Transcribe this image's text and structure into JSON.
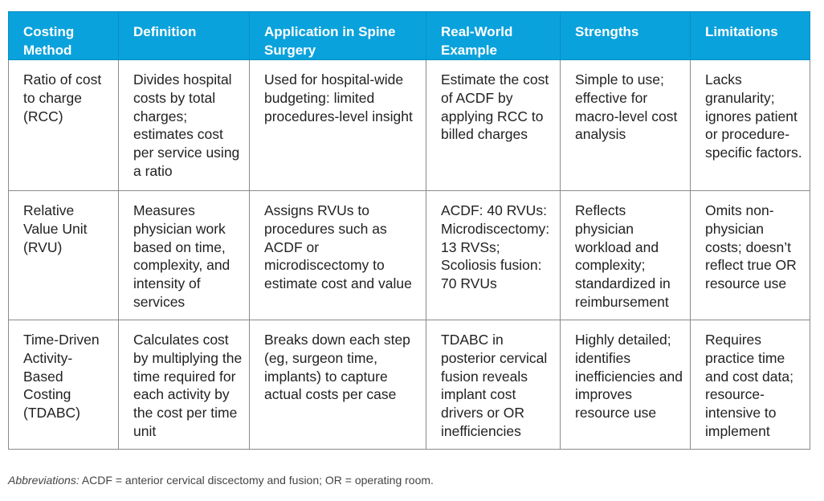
{
  "table": {
    "headers": [
      "Costing Method",
      "Definition",
      "Application in Spine Surgery",
      "Real-World Example",
      "Strengths",
      "Limitations"
    ],
    "rows": [
      {
        "method": "Ratio of cost to charge (RCC)",
        "definition": "Divides hospital costs by total charges; estimates cost per service using a ratio",
        "application": "Used for hospital-wide budgeting: limited procedures-level insight",
        "example": "Estimate the cost of ACDF by applying RCC to billed charges",
        "strengths": "Simple to use; effective for macro-level cost analysis",
        "limitations": "Lacks granularity; ignores patient or procedure-specific factors."
      },
      {
        "method": "Relative Value Unit (RVU)",
        "definition": "Measures physician work based on time, complexity, and intensity of services",
        "application": "Assigns RVUs to procedures such as ACDF or microdiscectomy to estimate cost and value",
        "example": "ACDF: 40 RVUs: Microdiscectomy: 13 RVSs; Scoliosis fusion: 70 RVUs",
        "strengths": "Reflects physician workload and complexity; standardized in reimbursement",
        "limitations": "Omits non-physician costs; doesn’t reflect true OR resource use"
      },
      {
        "method": "Time-Driven Activity-Based Costing (TDABC)",
        "definition": "Calculates cost by multiplying the time required for each activity by the cost per time unit",
        "application": "Breaks down each step (eg, surgeon time, implants) to capture actual costs per case",
        "example": "TDABC in posterior cervical fusion reveals implant cost drivers or OR inefficiencies",
        "strengths": "Highly detailed; identifies inefficiencies and improves resource use",
        "limitations": "Requires practice time and cost data; resource-intensive to implement"
      }
    ]
  },
  "footnote": {
    "label": "Abbreviations:",
    "text": " ACDF = anterior cervical discectomy and fusion; OR = operating room."
  }
}
